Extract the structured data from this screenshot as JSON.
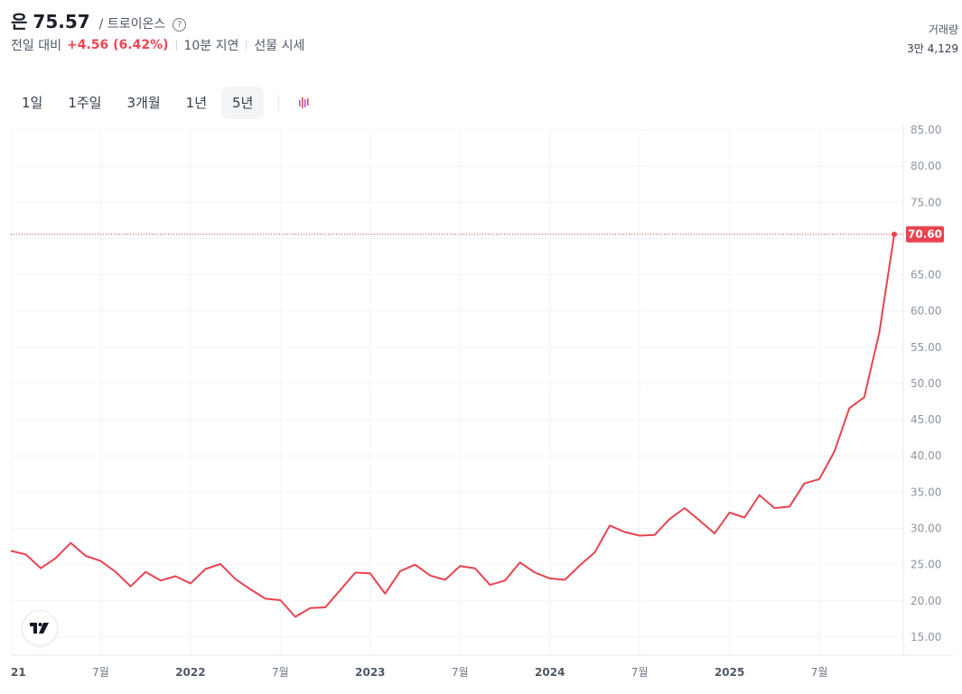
{
  "header": {
    "asset_name": "은",
    "price": "75.57",
    "exchange": "/ 트로이온스",
    "help_glyph": "?",
    "change_label": "전일 대비",
    "change_value": "+4.56 (6.42%)",
    "delay": "10분 지연",
    "quote_type": "선물 시세",
    "change_color": "#f04452"
  },
  "volume": {
    "label": "거래량",
    "value": "3만 4,129"
  },
  "tabs": [
    {
      "label": "1일",
      "active": false
    },
    {
      "label": "1주일",
      "active": false
    },
    {
      "label": "3개월",
      "active": false
    },
    {
      "label": "1년",
      "active": false
    },
    {
      "label": "5년",
      "active": true
    }
  ],
  "icons": {
    "chart_type": "candlestick-toggle-icon",
    "logo": "tradingview-logo"
  },
  "chart_data": {
    "type": "line",
    "line_color": "#e8434e",
    "current_price_label": "70.60",
    "current_price": 70.6,
    "ylim": [
      12.5,
      85
    ],
    "y_ticks": [
      "15.00",
      "20.00",
      "25.00",
      "30.00",
      "35.00",
      "40.00",
      "45.00",
      "50.00",
      "55.00",
      "60.00",
      "65.00",
      "70.00",
      "75.00",
      "80.00",
      "85.00"
    ],
    "x_ticks": [
      {
        "label": "21",
        "t": 0
      },
      {
        "label": "7월",
        "t": 6
      },
      {
        "label": "2022",
        "t": 12
      },
      {
        "label": "7월",
        "t": 18
      },
      {
        "label": "2023",
        "t": 24
      },
      {
        "label": "7월",
        "t": 30
      },
      {
        "label": "2024",
        "t": 36
      },
      {
        "label": "7월",
        "t": 42
      },
      {
        "label": "2025",
        "t": 48
      },
      {
        "label": "7월",
        "t": 54
      }
    ],
    "grid": true,
    "series": [
      {
        "values": [
          26.9,
          26.4,
          24.5,
          25.9,
          28.0,
          26.2,
          25.5,
          24.0,
          22.0,
          24.0,
          22.8,
          23.4,
          22.4,
          24.4,
          25.1,
          23.0,
          21.6,
          20.3,
          20.1,
          17.8,
          19.0,
          19.1,
          21.5,
          23.9,
          23.8,
          21.0,
          24.1,
          25.0,
          23.5,
          22.9,
          24.8,
          24.5,
          22.2,
          22.8,
          25.3,
          23.9,
          23.1,
          22.9,
          24.9,
          26.7,
          30.4,
          29.5,
          29.0,
          29.1,
          31.3,
          32.8,
          31.1,
          29.3,
          32.2,
          31.5,
          34.6,
          32.8,
          33.0,
          36.2,
          36.8,
          40.6,
          46.6,
          48.1,
          57.0,
          70.6
        ]
      }
    ]
  }
}
